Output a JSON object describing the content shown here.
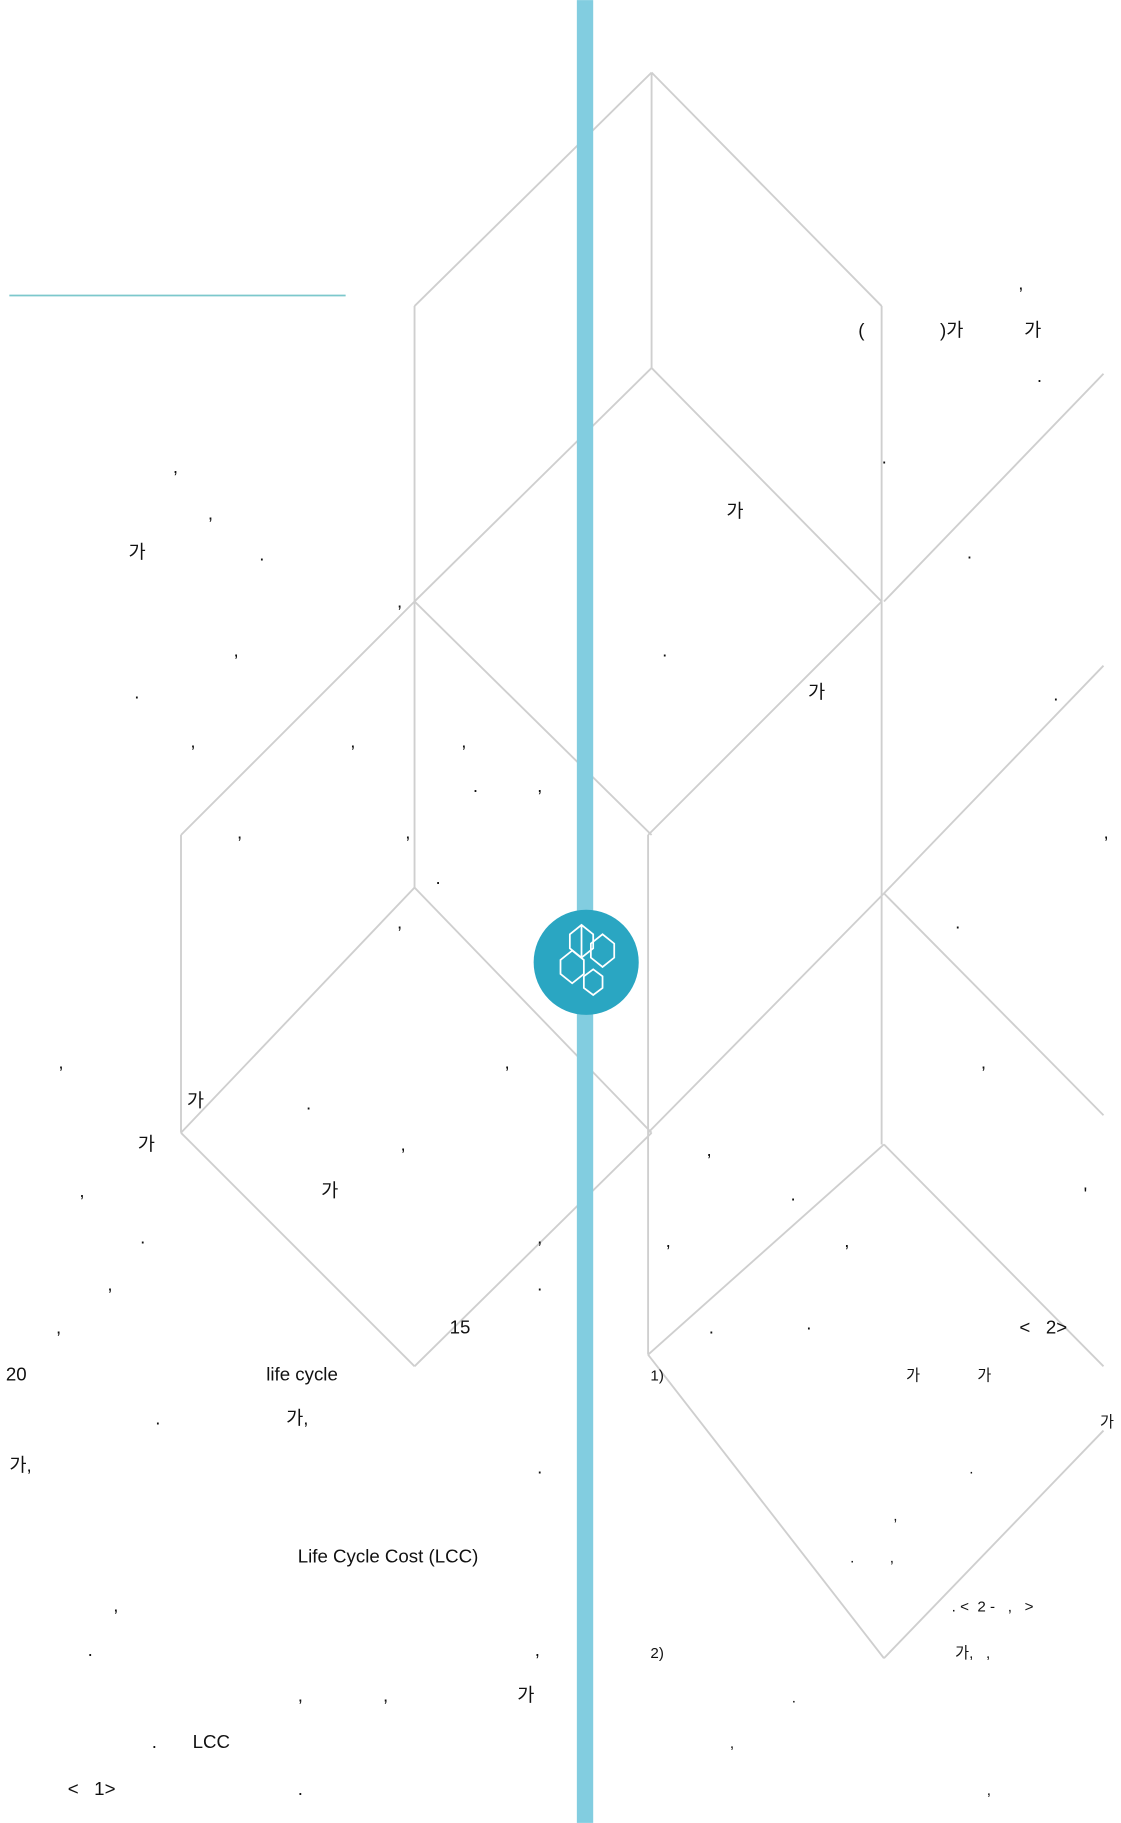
{
  "fragments": [
    ",",
    ",",
    "가",
    ".",
    ",",
    ",",
    ".",
    ",",
    ",",
    ",",
    ".",
    ",",
    ",",
    ",",
    ".",
    ",",
    ",",
    ",",
    "가",
    ".",
    "가",
    ",",
    ",",
    "가",
    ".",
    ",",
    ",",
    ".",
    ",",
    "15",
    "20",
    "life cycle",
    ".",
    "가,",
    "가,",
    ".",
    "Life Cycle Cost (LCC)",
    ",",
    ".",
    ",",
    ",",
    ",",
    "가",
    ".",
    "LCC",
    "<   1>",
    ".",
    ",",
    "(",
    ")가",
    "가",
    ".",
    ".",
    "가",
    ".",
    ".",
    "가",
    ".",
    ",",
    ".",
    ",",
    ",",
    ".",
    "'",
    ",",
    ",",
    ".",
    "·",
    "<   2>",
    "1)",
    "가",
    "가",
    "가",
    ".",
    ",",
    ".",
    ",",
    ". <  2 -   ,   >",
    "2)",
    "가,   ,",
    ".",
    ",",
    ","
  ]
}
